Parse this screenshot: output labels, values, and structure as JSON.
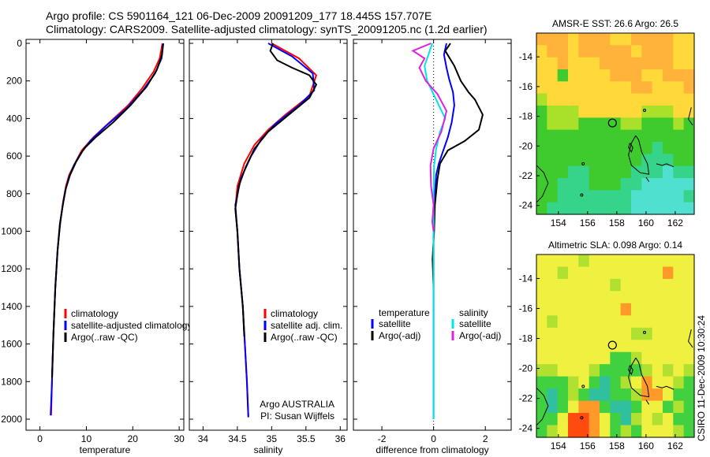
{
  "header": {
    "line1": "Argo profile: CS 5901164_121 06-Dec-2009 20091209_177 18.445S 157.707E",
    "line2": "Climatology: CARS2009. Satellite-adjusted climatology: synTS_20091205.nc (1.2d earlier)"
  },
  "colors": {
    "climatology": "#ff0000",
    "satellite": "#0000ff",
    "argo": "#000000",
    "salinity_sat": "#00e5e5",
    "salinity_argo": "#e020e0"
  },
  "chart_data": [
    {
      "type": "line",
      "id": "temperature",
      "xlabel": "temperature",
      "ylabel": "",
      "xlim": [
        -3,
        31
      ],
      "ylim": [
        2050,
        0
      ],
      "y_reversed": true,
      "xticks": [
        0,
        10,
        20,
        30
      ],
      "yticks": [
        0,
        200,
        400,
        600,
        800,
        1000,
        1200,
        1400,
        1600,
        1800,
        2000
      ],
      "legend": [
        "climatology",
        "satellite-adjusted climatology",
        "Argo(..raw -QC)"
      ],
      "legend_position": "lower-right",
      "series": [
        {
          "name": "climatology",
          "color": "#ff0000",
          "points": [
            [
              26.4,
              0
            ],
            [
              25.8,
              80
            ],
            [
              24.5,
              150
            ],
            [
              22,
              240
            ],
            [
              19,
              330
            ],
            [
              15,
              420
            ],
            [
              11.5,
              500
            ],
            [
              9,
              570
            ],
            [
              7.5,
              640
            ],
            [
              6.3,
              700
            ],
            [
              5.6,
              760
            ],
            [
              5.0,
              840
            ],
            [
              4.4,
              950
            ],
            [
              3.8,
              1100
            ],
            [
              3.3,
              1300
            ],
            [
              2.9,
              1550
            ],
            [
              2.6,
              1800
            ],
            [
              2.4,
              1980
            ]
          ]
        },
        {
          "name": "satellite-adjusted climatology",
          "color": "#0000ff",
          "points": [
            [
              26.6,
              0
            ],
            [
              26.2,
              80
            ],
            [
              24.8,
              160
            ],
            [
              22.2,
              250
            ],
            [
              18.5,
              350
            ],
            [
              14.2,
              440
            ],
            [
              10.8,
              520
            ],
            [
              8.7,
              590
            ],
            [
              7.3,
              650
            ],
            [
              6.3,
              710
            ],
            [
              5.5,
              780
            ],
            [
              4.9,
              860
            ],
            [
              4.3,
              970
            ],
            [
              3.8,
              1100
            ],
            [
              3.3,
              1300
            ],
            [
              2.9,
              1550
            ],
            [
              2.6,
              1800
            ],
            [
              2.3,
              1980
            ]
          ]
        },
        {
          "name": "Argo(..raw -QC)",
          "color": "#000000",
          "points": [
            [
              26.5,
              5
            ],
            [
              26.3,
              60
            ],
            [
              25.2,
              140
            ],
            [
              23.0,
              230
            ],
            [
              19.5,
              330
            ],
            [
              15.8,
              420
            ],
            [
              12.0,
              500
            ],
            [
              9.5,
              560
            ],
            [
              7.8,
              630
            ],
            [
              6.5,
              700
            ],
            [
              5.6,
              770
            ],
            [
              5.0,
              850
            ],
            [
              4.3,
              960
            ],
            [
              3.8,
              1100
            ],
            [
              3.3,
              1300
            ],
            [
              2.9,
              1550
            ],
            [
              2.6,
              1780
            ]
          ]
        }
      ]
    },
    {
      "type": "line",
      "id": "salinity",
      "xlabel": "salinity",
      "ylabel": "",
      "xlim": [
        33.8,
        36.1
      ],
      "ylim": [
        2050,
        0
      ],
      "y_reversed": true,
      "xticks": [
        34,
        34.5,
        35,
        35.5,
        36
      ],
      "legend": [
        "climatology",
        "satellite adj. clim.",
        "Argo(..raw -QC)"
      ],
      "legend_position": "lower-right",
      "annotation": [
        "Argo AUSTRALIA",
        "PI: Susan Wijffels"
      ],
      "series": [
        {
          "name": "climatology",
          "color": "#ff0000",
          "points": [
            [
              35.0,
              0
            ],
            [
              35.4,
              80
            ],
            [
              35.65,
              170
            ],
            [
              35.55,
              280
            ],
            [
              35.2,
              380
            ],
            [
              34.95,
              460
            ],
            [
              34.75,
              540
            ],
            [
              34.6,
              640
            ],
            [
              34.5,
              760
            ],
            [
              34.47,
              880
            ],
            [
              34.5,
              1000
            ],
            [
              34.53,
              1200
            ],
            [
              34.58,
              1400
            ],
            [
              34.61,
              1600
            ],
            [
              34.64,
              1800
            ],
            [
              34.66,
              1990
            ]
          ]
        },
        {
          "name": "satellite adj. clim.",
          "color": "#0000ff",
          "points": [
            [
              34.95,
              0
            ],
            [
              35.3,
              70
            ],
            [
              35.6,
              160
            ],
            [
              35.62,
              250
            ],
            [
              35.4,
              330
            ],
            [
              35.05,
              430
            ],
            [
              34.85,
              510
            ],
            [
              34.7,
              600
            ],
            [
              34.55,
              720
            ],
            [
              34.47,
              860
            ],
            [
              34.5,
              1000
            ],
            [
              34.53,
              1200
            ],
            [
              34.58,
              1400
            ],
            [
              34.61,
              1600
            ],
            [
              34.64,
              1800
            ],
            [
              34.66,
              1990
            ]
          ]
        },
        {
          "name": "Argo(..raw -QC)",
          "color": "#000000",
          "points": [
            [
              35.02,
              0
            ],
            [
              34.98,
              40
            ],
            [
              35.08,
              90
            ],
            [
              35.3,
              130
            ],
            [
              35.55,
              170
            ],
            [
              35.65,
              220
            ],
            [
              35.55,
              290
            ],
            [
              35.25,
              380
            ],
            [
              34.95,
              470
            ],
            [
              34.75,
              560
            ],
            [
              34.62,
              660
            ],
            [
              34.52,
              760
            ],
            [
              34.47,
              880
            ],
            [
              34.5,
              1000
            ],
            [
              34.53,
              1200
            ],
            [
              34.58,
              1400
            ],
            [
              34.6,
              1560
            ]
          ]
        }
      ]
    },
    {
      "type": "line",
      "id": "difference",
      "xlabel": "difference from climatology",
      "xlim": [
        -3.1,
        3.0
      ],
      "ylim": [
        2050,
        0
      ],
      "y_reversed": true,
      "xticks": [
        -2,
        0,
        2
      ],
      "legend_left_title": "temperature",
      "legend_right_title": "salinity",
      "legend_left": [
        "satellite",
        "Argo(-adj)"
      ],
      "legend_right": [
        "satellite",
        "Argo(-adj)"
      ],
      "legend_position": "lower-center",
      "series": [
        {
          "name": "temperature satellite",
          "color": "#0000ff",
          "points": [
            [
              0.5,
              0
            ],
            [
              0.4,
              60
            ],
            [
              0.5,
              130
            ],
            [
              0.6,
              190
            ],
            [
              0.75,
              260
            ],
            [
              0.8,
              330
            ],
            [
              0.7,
              420
            ],
            [
              0.55,
              500
            ],
            [
              0.35,
              580
            ],
            [
              0.2,
              640
            ],
            [
              0.1,
              700
            ],
            [
              0.05,
              800
            ],
            [
              0.03,
              900
            ],
            [
              0,
              1000
            ],
            [
              0,
              1400
            ],
            [
              0,
              2000
            ]
          ]
        },
        {
          "name": "temperature Argo(-adj)",
          "color": "#000000",
          "points": [
            [
              0.65,
              0
            ],
            [
              0.45,
              40
            ],
            [
              0.8,
              120
            ],
            [
              1.05,
              200
            ],
            [
              1.35,
              260
            ],
            [
              1.6,
              300
            ],
            [
              1.9,
              380
            ],
            [
              1.75,
              460
            ],
            [
              1.2,
              520
            ],
            [
              0.55,
              570
            ],
            [
              0.25,
              640
            ],
            [
              0.15,
              720
            ],
            [
              0.05,
              860
            ],
            [
              0.02,
              1000
            ],
            [
              -0.04,
              1150
            ],
            [
              0,
              1300
            ]
          ]
        },
        {
          "name": "salinity satellite",
          "color": "#00e5e5",
          "points": [
            [
              -0.05,
              0
            ],
            [
              -0.2,
              60
            ],
            [
              -0.35,
              120
            ],
            [
              -0.25,
              200
            ],
            [
              0.1,
              300
            ],
            [
              0.45,
              400
            ],
            [
              0.25,
              470
            ],
            [
              0.1,
              560
            ],
            [
              0.02,
              650
            ],
            [
              0,
              800
            ],
            [
              0,
              1000
            ],
            [
              0,
              1400
            ],
            [
              0,
              2000
            ]
          ]
        },
        {
          "name": "salinity Argo(-adj)",
          "color": "#e020e0",
          "points": [
            [
              -0.1,
              0
            ],
            [
              -0.8,
              40
            ],
            [
              -0.35,
              80
            ],
            [
              -0.55,
              130
            ],
            [
              -0.3,
              200
            ],
            [
              0.15,
              270
            ],
            [
              0.5,
              360
            ],
            [
              0.3,
              470
            ],
            [
              0.0,
              560
            ],
            [
              -0.12,
              650
            ],
            [
              -0.1,
              760
            ],
            [
              0,
              860
            ],
            [
              -0.05,
              950
            ],
            [
              0,
              1000
            ]
          ]
        }
      ]
    },
    {
      "type": "heatmap",
      "id": "sst",
      "title": "AMSR-E SST: 26.6 Argo: 26.5",
      "xlim": [
        152.5,
        163.3
      ],
      "ylim": [
        -24.6,
        -12.4
      ],
      "xticks": [
        154,
        156,
        158,
        160,
        162
      ],
      "yticks": [
        -14,
        -16,
        -18,
        -20,
        -22,
        -24
      ],
      "argo_position": [
        157.7,
        -18.45
      ],
      "rows_north_to_south": [
        "OOOYOOOYYOOOOYY",
        "YOOYOOOOOYOOOYY",
        "YYOYYYOOOOOOOYY",
        "YYGYYYYOOOYYOOO",
        "YYYYYYYYYOOYYYO",
        "LYYYYYYYYYYYYYY",
        "GLLLYYYYYYLLLYY",
        "GLLLGGGGLLGGGLG",
        "GGGGGGGGGGGGGGG",
        "GGGGGGGGGGGTGGG",
        "GGGGGGGGGGTTTGG",
        "GGGTTGGGGTTTCTT",
        "GGTTTGGGTTCCCCC",
        "GGTTTTTTTCCCCCT",
        "GTTTTTTTTCCCCCC"
      ],
      "palette": {
        "O": "#ffb33a",
        "Y": "#ffd83a",
        "L": "#a8e02a",
        "G": "#3fcb2d",
        "T": "#35d48a",
        "C": "#4fe0d0"
      }
    },
    {
      "type": "heatmap",
      "id": "sla",
      "title": "Altimetric SLA: 0.098 Argo: 0.14",
      "xlim": [
        152.5,
        163.3
      ],
      "ylim": [
        -24.6,
        -12.4
      ],
      "xticks": [
        154,
        156,
        158,
        160,
        162
      ],
      "yticks": [
        -14,
        -16,
        -18,
        -20,
        -22,
        -24
      ],
      "argo_position": [
        157.7,
        -18.45
      ],
      "rows_north_to_south": [
        "YYYYLYYYYYYYYYY",
        "YYLYYYYYYYYYOYY",
        "YYYYYYYLYYYYYYY",
        "YYYYYYYYYYYYYYY",
        "YYYYYYYYOYYYYYY",
        "YLYYYYYYYYYYYYY",
        "YYYYYYYYYLLYYYY",
        "YYYYYYYYYYYYYYY",
        "YYYYYYYGGLYYYYY",
        "LLYYYLGGGGLYLYL",
        "GGGLYGTGLYOYYLG",
        "GTGLGTTGGLOOYGG",
        "GTGYOOGTTGYYGLG",
        "GGYRROYGTLYLYGG",
        "GLYRROYGLGYYYLG"
      ],
      "palette": {
        "O": "#ff9a2a",
        "Y": "#f0f040",
        "L": "#b0e030",
        "G": "#40d040",
        "T": "#30c0a0",
        "R": "#ff4a10"
      }
    }
  ],
  "credit": "CSIRO 11-Dec-2009 10:30:24"
}
